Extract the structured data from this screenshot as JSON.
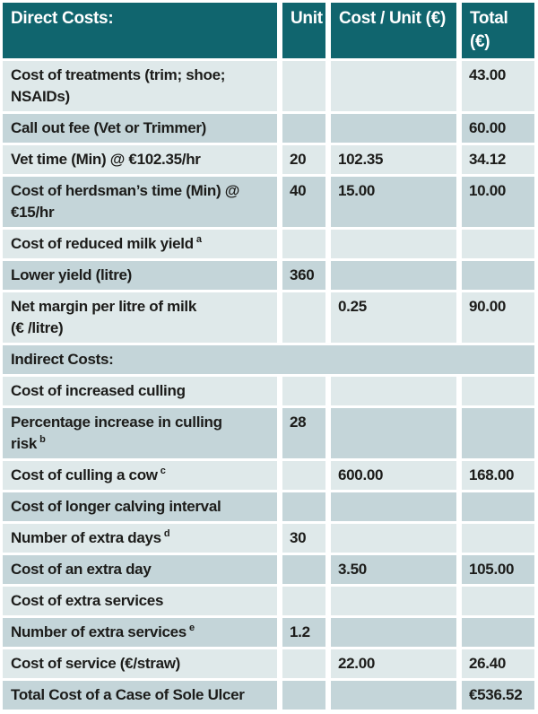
{
  "colors": {
    "header_bg": "#10656e",
    "header_text": "#ffffff",
    "row_light": "#dfe9ea",
    "row_dark": "#c4d5d9",
    "text": "#1c1c1a",
    "divider": "#ffffff"
  },
  "table": {
    "header": {
      "col_label": "Direct Costs:",
      "col_unit": "Unit",
      "col_cost_per_unit": "Cost / Unit (€)",
      "col_total": "Total (€)"
    },
    "rows": [
      {
        "label": "Cost of treatments (trim; shoe;\nNSAIDs)",
        "unit": "",
        "cost_per_unit": "",
        "total": "43.00"
      },
      {
        "label": "Call out fee (Vet or Trimmer)",
        "unit": "",
        "cost_per_unit": "",
        "total": "60.00"
      },
      {
        "label": "Vet time (Min) @ €102.35/hr",
        "unit": "20",
        "cost_per_unit": "102.35",
        "total": "34.12"
      },
      {
        "label": "Cost of herdsman’s time (Min) @\n€15/hr",
        "unit": "40",
        "cost_per_unit": "15.00",
        "total": "10.00"
      },
      {
        "label": "Cost of reduced milk yield",
        "sup": "a",
        "unit": "",
        "cost_per_unit": "",
        "total": ""
      },
      {
        "label": "Lower yield (litre)",
        "unit": "360",
        "cost_per_unit": "",
        "total": ""
      },
      {
        "label": "Net margin per litre of milk\n(€ /litre)",
        "unit": "",
        "cost_per_unit": "0.25",
        "total": "90.00"
      },
      {
        "label": "Indirect Costs:",
        "span": true
      },
      {
        "label": "Cost of increased culling",
        "unit": "",
        "cost_per_unit": "",
        "total": ""
      },
      {
        "label": "Percentage increase in culling\nrisk",
        "sup": "b",
        "unit": "28",
        "cost_per_unit": "",
        "total": ""
      },
      {
        "label": "Cost of culling a cow",
        "sup": "c",
        "unit": "",
        "cost_per_unit": "600.00",
        "total": "168.00"
      },
      {
        "label": "Cost of longer calving interval",
        "unit": "",
        "cost_per_unit": "",
        "total": ""
      },
      {
        "label": "Number of extra days",
        "sup": "d",
        "unit": "30",
        "cost_per_unit": "",
        "total": ""
      },
      {
        "label": "Cost of an extra day",
        "unit": "",
        "cost_per_unit": "3.50",
        "total": "105.00"
      },
      {
        "label": "Cost of extra services",
        "unit": "",
        "cost_per_unit": "",
        "total": ""
      },
      {
        "label": "Number of extra services",
        "sup": "e",
        "unit": "1.2",
        "cost_per_unit": "",
        "total": ""
      },
      {
        "label": "Cost of service (€/straw)",
        "unit": "",
        "cost_per_unit": "22.00",
        "total": "26.40"
      },
      {
        "label": "Total Cost of a Case of Sole Ulcer",
        "unit": "",
        "cost_per_unit": "",
        "total": "€536.52"
      }
    ]
  }
}
